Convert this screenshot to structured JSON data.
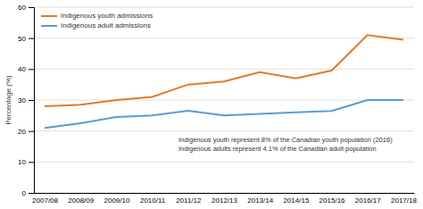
{
  "chart_data": {
    "type": "line",
    "categories": [
      "2007/08",
      "2008/09",
      "2009/10",
      "2010/11",
      "2011/12",
      "2012/13",
      "2013/14",
      "2014/15",
      "2015/16",
      "2016/17",
      "2017/18"
    ],
    "series": [
      {
        "name": "Indigenous youth admissions",
        "color": "#E07B28",
        "values": [
          28,
          28.5,
          30,
          31,
          35,
          36,
          39,
          37,
          39.5,
          51,
          49.5
        ]
      },
      {
        "name": "Indigenous adult admissions",
        "color": "#5B9BD5",
        "values": [
          21,
          22.5,
          24.5,
          25,
          26.5,
          25,
          25.5,
          26,
          26.5,
          30,
          30
        ]
      }
    ],
    "ylabel": "Percentage (%)",
    "ylim": [
      0,
      60
    ],
    "yticks": [
      0,
      10,
      20,
      30,
      40,
      50,
      60
    ],
    "grid": true,
    "legend": "upper-left",
    "annotations": [
      "Indigenous youth represent 8% of the Canadian youth population (2016)",
      "Indigenous adults represent 4.1% of the Canadian adult population"
    ]
  }
}
